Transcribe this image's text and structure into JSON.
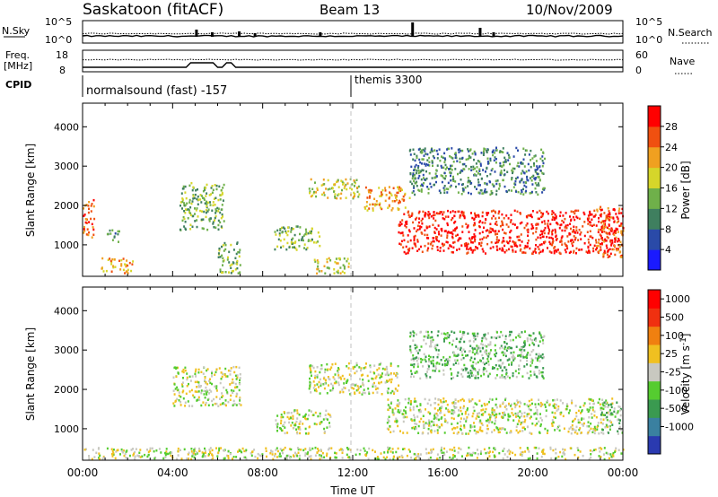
{
  "header": {
    "station": "Saskatoon (fitACF)",
    "beam": "Beam 13",
    "date": "10/Nov/2009"
  },
  "top_panel": {
    "nsky_label": "N.Sky",
    "nsky_ticks": [
      "10^5",
      "10^0"
    ],
    "nsearch_label": "N.Search",
    "nsearch_ticks": [
      "10^5",
      "10^0"
    ],
    "freq_label": "Freq.",
    "freq_unit": "[MHz]",
    "freq_ticks": [
      "18",
      "8"
    ],
    "nave_label": "Nave",
    "nave_ticks": [
      "60",
      "0"
    ],
    "cpid_label": "CPID",
    "cpid_segments": [
      {
        "name": "normalsound (fast) -157",
        "start_hour": 0
      },
      {
        "name": "themis 3300",
        "start_hour": 12
      }
    ]
  },
  "chart_data": [
    {
      "type": "heatmap",
      "panel": "power",
      "ylabel": "Slant Range [km]",
      "xlabel": "",
      "yticks": [
        "1000",
        "2000",
        "3000",
        "4000"
      ],
      "ylim": [
        200,
        4600
      ],
      "xlim": [
        0,
        24
      ],
      "colorbar": {
        "label": "Power [dB]",
        "ticks": [
          "4",
          "8",
          "12",
          "16",
          "20",
          "24",
          "28"
        ],
        "colors": [
          "#1a1aff",
          "#2a4aa8",
          "#3f7f5f",
          "#6fb04a",
          "#d6d62a",
          "#f0a020",
          "#f05010",
          "#ff0000"
        ]
      },
      "echo_regions": [
        {
          "t0": 0.0,
          "t1": 0.5,
          "r0": 1200,
          "r1": 2200,
          "level": 6
        },
        {
          "t0": 0.8,
          "t1": 2.2,
          "r0": 300,
          "r1": 700,
          "level": 5
        },
        {
          "t0": 1.0,
          "t1": 1.6,
          "r0": 1100,
          "r1": 1400,
          "level": 2
        },
        {
          "t0": 4.3,
          "t1": 6.3,
          "r0": 1400,
          "r1": 2600,
          "level": 3
        },
        {
          "t0": 6.0,
          "t1": 7.0,
          "r0": 300,
          "r1": 1100,
          "level": 3
        },
        {
          "t0": 8.5,
          "t1": 10.5,
          "r0": 900,
          "r1": 1500,
          "level": 3
        },
        {
          "t0": 10.2,
          "t1": 11.8,
          "r0": 300,
          "r1": 700,
          "level": 4
        },
        {
          "t0": 10.0,
          "t1": 12.3,
          "r0": 2200,
          "r1": 2700,
          "level": 4
        },
        {
          "t0": 12.5,
          "t1": 14.5,
          "r0": 1900,
          "r1": 2500,
          "level": 5
        },
        {
          "t0": 14.0,
          "t1": 23.8,
          "r0": 800,
          "r1": 1900,
          "level": 7
        },
        {
          "t0": 14.5,
          "t1": 20.5,
          "r0": 2300,
          "r1": 3500,
          "level": 2
        },
        {
          "t0": 22.8,
          "t1": 24.0,
          "r0": 700,
          "r1": 2000,
          "level": 6
        }
      ]
    },
    {
      "type": "heatmap",
      "panel": "velocity",
      "ylabel": "Slant Range [km]",
      "xlabel": "Time UT",
      "yticks": [
        "1000",
        "2000",
        "3000",
        "4000"
      ],
      "xticks": [
        "00:00",
        "04:00",
        "08:00",
        "12:00",
        "16:00",
        "20:00",
        "00:00"
      ],
      "ylim": [
        200,
        4600
      ],
      "xlim": [
        0,
        24
      ],
      "colorbar": {
        "label": "Velocity [m s",
        "label_superscript": "-1",
        "label_closing": "]",
        "ticks": [
          "1000",
          "500",
          "100",
          "25",
          "-25",
          "-100",
          "-500",
          "-1000"
        ],
        "colors": [
          "#2a3ab0",
          "#3a80a0",
          "#3a9a50",
          "#55cc30",
          "#c8c8c0",
          "#f0c020",
          "#f08010",
          "#f03010",
          "#ff0000"
        ]
      },
      "echo_regions": [
        {
          "t0": 0.0,
          "t1": 24.0,
          "r0": 250,
          "r1": 550,
          "level": 4
        },
        {
          "t0": 4.0,
          "t1": 7.0,
          "r0": 1600,
          "r1": 2600,
          "level": 4
        },
        {
          "t0": 8.5,
          "t1": 11.0,
          "r0": 900,
          "r1": 1500,
          "level": 4
        },
        {
          "t0": 10.0,
          "t1": 14.0,
          "r0": 1900,
          "r1": 2700,
          "level": 4
        },
        {
          "t0": 13.5,
          "t1": 23.5,
          "r0": 900,
          "r1": 1800,
          "level": 4
        },
        {
          "t0": 14.5,
          "t1": 20.5,
          "r0": 2300,
          "r1": 3500,
          "level": 3
        },
        {
          "t0": 23.0,
          "t1": 24.0,
          "r0": 900,
          "r1": 1700,
          "level": 3
        }
      ]
    }
  ]
}
